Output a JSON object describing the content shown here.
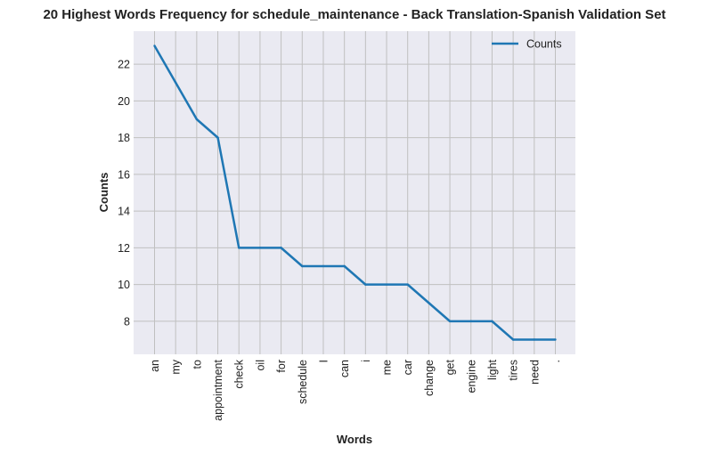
{
  "chart_data": {
    "type": "line",
    "title": "20 Highest Words Frequency for schedule_maintenance - Back Translation-Spanish Validation Set",
    "xlabel": "Words",
    "ylabel": "Counts",
    "categories": [
      "an",
      "my",
      "to",
      "appointment",
      "check",
      "oil",
      "for",
      "schedule",
      "I",
      "can",
      "i",
      "me",
      "car",
      "change",
      "get",
      "engine",
      "light",
      "tires",
      "need",
      "."
    ],
    "series": [
      {
        "name": "Counts",
        "values": [
          23,
          21,
          19,
          18,
          12,
          12,
          12,
          11,
          11,
          11,
          10,
          10,
          10,
          9,
          8,
          8,
          8,
          7,
          7,
          7
        ],
        "color": "#1f77b4"
      }
    ],
    "yticks": [
      8,
      10,
      12,
      14,
      16,
      18,
      20,
      22
    ],
    "ylim": [
      6.2,
      23.8
    ],
    "grid": true,
    "legend_position": "top-right",
    "background": "#eaeaf2",
    "grid_color": "#c0c0c0"
  }
}
